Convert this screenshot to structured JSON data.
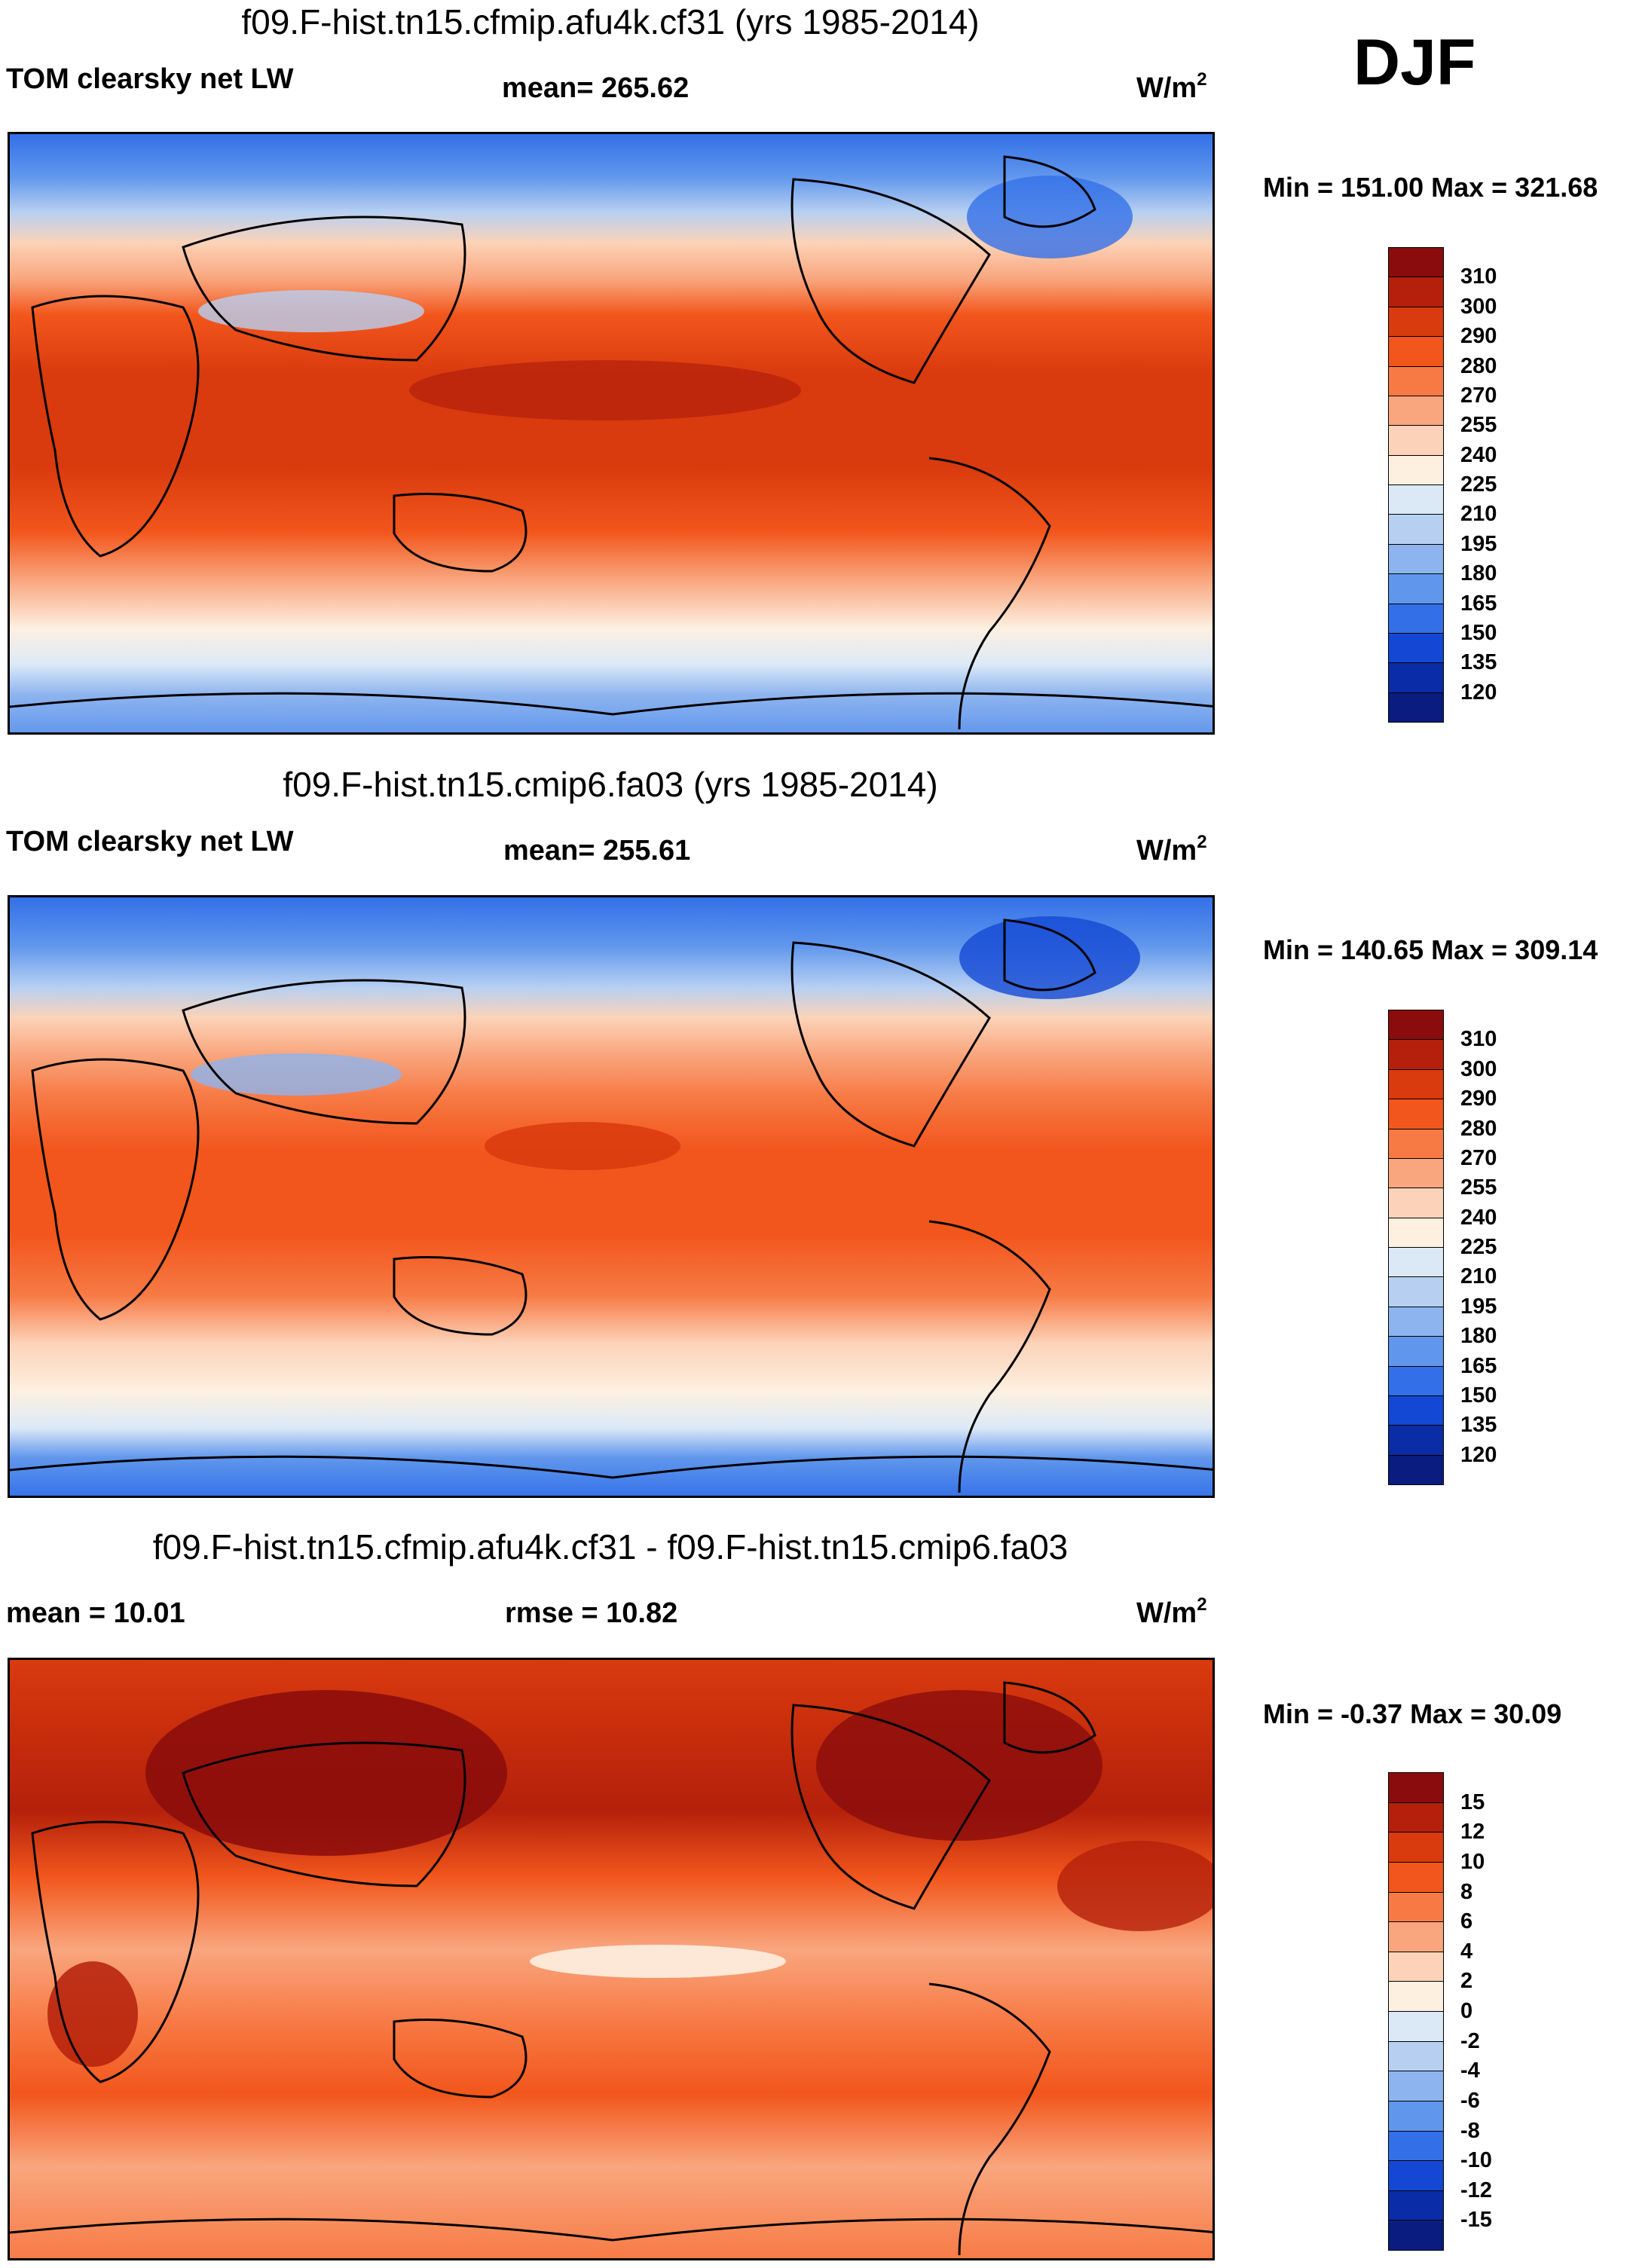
{
  "season": "DJF",
  "units": {
    "base": "W/m",
    "exp": "2"
  },
  "panels": [
    {
      "title": "f09.F-hist.tn15.cfmip.afu4k.cf31 (yrs 1985-2014)",
      "left_label": "TOM clearsky net LW",
      "center_label": "mean= 265.62",
      "minmax": "Min = 151.00 Max = 321.68"
    },
    {
      "title": "f09.F-hist.tn15.cmip6.fa03 (yrs 1985-2014)",
      "left_label": "TOM clearsky net LW",
      "center_label": "mean= 255.61",
      "minmax": "Min = 140.65 Max = 309.14"
    },
    {
      "title": "f09.F-hist.tn15.cfmip.afu4k.cf31 - f09.F-hist.tn15.cmip6.fa03",
      "left_label": "mean =  10.01",
      "center_label": "rmse =  10.82",
      "minmax": "Min =  -0.37 Max =  30.09"
    }
  ],
  "colorbar_abs": {
    "labels": [
      "310",
      "300",
      "290",
      "280",
      "270",
      "255",
      "240",
      "225",
      "210",
      "195",
      "180",
      "165",
      "150",
      "135",
      "120"
    ],
    "colors": [
      "#8a0c0c",
      "#b4200b",
      "#d93a0e",
      "#f2561c",
      "#f77a45",
      "#f9a67e",
      "#fcd3b8",
      "#fdf0e1",
      "#dbe9f7",
      "#b7d0f2",
      "#8db4ef",
      "#6096ec",
      "#3370e8",
      "#1448d4",
      "#0a2ca6",
      "#0b1c80"
    ]
  },
  "colorbar_diff": {
    "labels": [
      "15",
      "12",
      "10",
      "8",
      "6",
      "4",
      "2",
      "0",
      "-2",
      "-4",
      "-6",
      "-8",
      "-10",
      "-12",
      "-15"
    ],
    "colors": [
      "#8a0c0c",
      "#b4200b",
      "#d93a0e",
      "#f2561c",
      "#f77a45",
      "#f9a67e",
      "#fcd3b8",
      "#fdf0e1",
      "#dbe9f7",
      "#b7d0f2",
      "#8db4ef",
      "#6096ec",
      "#3370e8",
      "#1448d4",
      "#0a2ca6",
      "#0b1c80"
    ]
  }
}
